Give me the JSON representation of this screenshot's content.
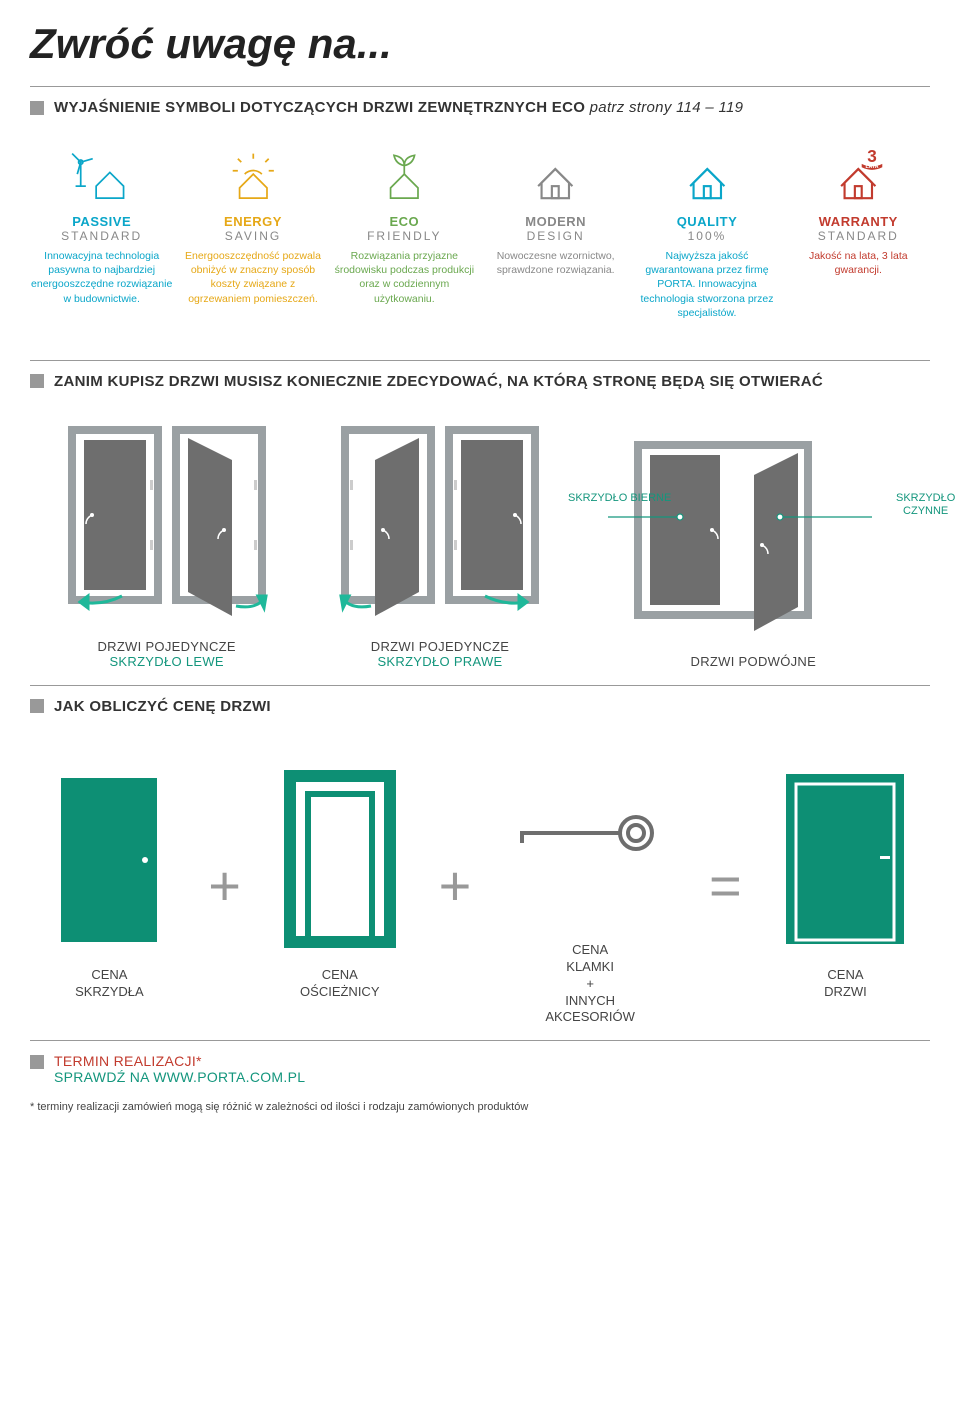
{
  "title": "Zwróć uwagę na...",
  "section1": {
    "heading_bold": "WYJAŚNIENIE SYMBOLI DOTYCZĄCYCH DRZWI ZEWNĘTRZNYCH ECO",
    "heading_ital": "patrz strony 114 – 119"
  },
  "symbols": [
    {
      "title1": "PASSIVE",
      "title2": "STANDARD",
      "color": "#0aa6c9",
      "desc": "Innowacyjna technologia pasywna to najbardziej energooszczędne rozwiązanie w budownictwie."
    },
    {
      "title1": "ENERGY",
      "title2": "SAVING",
      "color": "#e6a817",
      "desc": "Energooszczędność pozwala obniżyć w znaczny sposób koszty związane z ogrzewaniem pomieszczeń."
    },
    {
      "title1": "ECO",
      "title2": "FRIENDLY",
      "color": "#6aa84f",
      "desc": "Rozwiązania przyjazne środowisku podczas produkcji oraz w codziennym użytkowaniu."
    },
    {
      "title1": "MODERN",
      "title2": "DESIGN",
      "color": "#888888",
      "desc": "Nowoczesne wzornictwo, sprawdzone rozwiązania."
    },
    {
      "title1": "QUALITY",
      "title2": "100%",
      "color": "#0aa6c9",
      "desc": "Najwyższa jakość gwarantowana przez firmę PORTA. Innowacyjna technologia stworzona przez specjalistów."
    },
    {
      "title1": "WARRANTY",
      "title2": "STANDARD",
      "color": "#c23b2e",
      "badge_num": "3",
      "badge_text": "LATA",
      "desc": "Jakość na lata, 3 lata gwarancji."
    }
  ],
  "section2": {
    "heading": "ZANIM KUPISZ DRZWI MUSISZ KONIECZNIE ZDECYDOWAĆ, NA KTÓRĄ STRONĘ BĘDĄ SIĘ OTWIERAĆ"
  },
  "door_diagrams": {
    "frame_color": "#9aa0a3",
    "door_color": "#6e6e6e",
    "arrow_color": "#1fb89a",
    "line_color": "#14967d",
    "label_bierne": "SKRZYDŁO BIERNE",
    "label_czynne": "SKRZYDŁO CZYNNE",
    "items": [
      {
        "label1": "DRZWI POJEDYNCZE",
        "label2": "SKRZYDŁO LEWE"
      },
      {
        "label1": "DRZWI POJEDYNCZE",
        "label2": "SKRZYDŁO PRAWE"
      },
      {
        "label1": "DRZWI PODWÓJNE",
        "label2": ""
      }
    ]
  },
  "section3": {
    "heading": "JAK OBLICZYĆ CENĘ DRZWI"
  },
  "price": {
    "door_color": "#0d8f74",
    "op_plus": "+",
    "op_eq": "=",
    "items": [
      {
        "label": "CENA\nSKRZYDŁA"
      },
      {
        "label": "CENA\nOŚCIEŻNICY"
      },
      {
        "label": "CENA\nKLAMKI\n+\nINNYCH\nAKCESORIÓW"
      },
      {
        "label": "CENA\nDRZWI"
      }
    ]
  },
  "footer": {
    "line1": "TERMIN REALIZACJI*",
    "line2": "SPRAWDŹ NA WWW.PORTA.COM.PL",
    "note": "* terminy realizacji zamówień mogą się różnić w zależności od ilości i rodzaju zamówionych produktów"
  }
}
